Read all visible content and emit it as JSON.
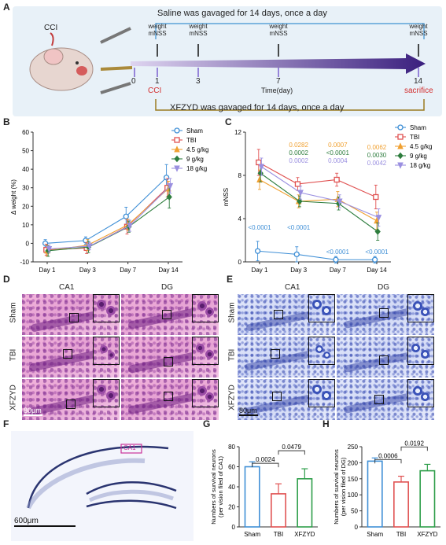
{
  "panels": {
    "A": "A",
    "B": "B",
    "C": "C",
    "D": "D",
    "E": "E",
    "F": "F",
    "G": "G",
    "H": "H"
  },
  "panelA": {
    "saline_text": "Saline was gavaged for 14 days, once a day",
    "xfzyd_text": "XFZYD was gavaged for 14 days, once a day",
    "cci_label": "CCI",
    "timeline_days": [
      "0",
      "1",
      "3",
      "7",
      "14"
    ],
    "time_axis_label": "Time(day)",
    "weight_label_line1": "weight",
    "weight_label_line2": "mNSS",
    "cci_marker": "CCI",
    "sacrifice_marker": "sacrifice"
  },
  "chart_data": [
    {
      "id": "B",
      "type": "line",
      "ylabel": "Δ weight (%)",
      "categories": [
        "Day 1",
        "Day 3",
        "Day 7",
        "Day 14"
      ],
      "yticks": [
        "-10",
        "0",
        "10",
        "20",
        "30",
        "40",
        "50",
        "60"
      ],
      "ylim": [
        -10,
        60
      ],
      "legend_placement": "top-right",
      "series": [
        {
          "name": "Sham",
          "color": "#3f8fd6",
          "marker": "circle",
          "values": [
            0,
            1.5,
            14.5,
            35.5
          ],
          "err": [
            2,
            2,
            5,
            7
          ]
        },
        {
          "name": "TBI",
          "color": "#e05252",
          "marker": "square",
          "values": [
            -3.5,
            -2.5,
            9,
            30
          ],
          "err": [
            3,
            3,
            4,
            5
          ]
        },
        {
          "name": "4.5 g/kg",
          "color": "#f0a030",
          "marker": "triangle",
          "values": [
            -4,
            -1,
            10,
            29.5
          ],
          "err": [
            3,
            3,
            3,
            4
          ]
        },
        {
          "name": "9 g/kg",
          "color": "#2e7d3e",
          "marker": "diamond",
          "values": [
            -4,
            -2,
            9,
            25
          ],
          "err": [
            3,
            3,
            3,
            6
          ]
        },
        {
          "name": "18 g/kg",
          "color": "#9a8fe0",
          "marker": "tri-down",
          "values": [
            -3,
            -1.5,
            9.5,
            31
          ],
          "err": [
            2,
            2,
            3,
            4
          ]
        }
      ]
    },
    {
      "id": "C",
      "type": "line",
      "ylabel": "mNSS",
      "categories": [
        "Day 1",
        "Day 3",
        "Day 7",
        "Day 14"
      ],
      "yticks": [
        "0",
        "4",
        "8",
        "12"
      ],
      "ylim": [
        0,
        12
      ],
      "legend_placement": "top-right",
      "series": [
        {
          "name": "Sham",
          "color": "#3f8fd6",
          "marker": "circle",
          "values": [
            1,
            0.7,
            0.2,
            0.2
          ],
          "err": [
            0.9,
            0.7,
            0.3,
            0.3
          ]
        },
        {
          "name": "TBI",
          "color": "#e05252",
          "marker": "square",
          "values": [
            9.2,
            7.2,
            7.6,
            6
          ],
          "err": [
            1.2,
            0.6,
            0.6,
            1.1
          ]
        },
        {
          "name": "4.5 g/kg",
          "color": "#f0a030",
          "marker": "triangle",
          "values": [
            7.6,
            5.6,
            5.8,
            3.8
          ],
          "err": [
            0.9,
            0.6,
            0.7,
            0.8
          ]
        },
        {
          "name": "9 g/kg",
          "color": "#2e7d3e",
          "marker": "diamond",
          "values": [
            8.2,
            5.6,
            5.4,
            2.8
          ],
          "err": [
            0.8,
            0.5,
            0.6,
            0.8
          ]
        },
        {
          "name": "18 g/kg",
          "color": "#9a8fe0",
          "marker": "tri-down",
          "values": [
            8.8,
            6.4,
            5.6,
            4.1
          ],
          "err": [
            0.8,
            0.6,
            0.6,
            0.8
          ]
        }
      ],
      "annotations": [
        {
          "text": "<0.0001",
          "day": "Day 1",
          "color": "#3f8fd6"
        },
        {
          "text": "<0.0001",
          "day": "Day 3",
          "color": "#3f8fd6"
        },
        {
          "text": "<0.0001",
          "day": "Day 7",
          "color": "#3f8fd6"
        },
        {
          "text": "<0.0001",
          "day": "Day 14",
          "color": "#3f8fd6"
        },
        {
          "text": "0.0282",
          "day": "Day 3",
          "color": "#f0a030"
        },
        {
          "text": "0.0002",
          "day": "Day 3",
          "color": "#2e7d3e"
        },
        {
          "text": "0.0002",
          "day": "Day 3",
          "color": "#9a8fe0"
        },
        {
          "text": "0.0007",
          "day": "Day 7",
          "color": "#f0a030"
        },
        {
          "text": "<0.0001",
          "day": "Day 7",
          "color": "#2e7d3e"
        },
        {
          "text": "0.0004",
          "day": "Day 7",
          "color": "#9a8fe0"
        },
        {
          "text": "0.0062",
          "day": "Day 14",
          "color": "#f0a030"
        },
        {
          "text": "0.0030",
          "day": "Day 14",
          "color": "#2e7d3e"
        },
        {
          "text": "0.0042",
          "day": "Day 14",
          "color": "#9a8fe0"
        }
      ]
    },
    {
      "id": "G",
      "type": "bar",
      "ylabel_line1": "Numbers of survival neurons",
      "ylabel_line2": "(per vision filed of CA1)",
      "categories": [
        "Sham",
        "TBI",
        "XFZYD"
      ],
      "values": [
        60,
        33,
        48
      ],
      "err": [
        5,
        10,
        10
      ],
      "colors": [
        "#3f8fd6",
        "#e05252",
        "#2e9e4a"
      ],
      "yticks": [
        "0",
        "20",
        "40",
        "60",
        "80"
      ],
      "ylim": [
        0,
        80
      ],
      "brackets": [
        {
          "from": 0,
          "to": 1,
          "p": "0.0024"
        },
        {
          "from": 1,
          "to": 2,
          "p": "0.0479"
        }
      ]
    },
    {
      "id": "H",
      "type": "bar",
      "ylabel_line1": "Numbers of survival neurons",
      "ylabel_line2": "(per vision filed of DG)",
      "categories": [
        "Sham",
        "TBI",
        "XFZYD"
      ],
      "values": [
        205,
        140,
        175
      ],
      "err": [
        10,
        18,
        20
      ],
      "colors": [
        "#3f8fd6",
        "#e05252",
        "#2e9e4a"
      ],
      "yticks": [
        "0",
        "50",
        "100",
        "150",
        "200",
        "250"
      ],
      "ylim": [
        0,
        250
      ],
      "brackets": [
        {
          "from": 0,
          "to": 1,
          "p": "0.0006"
        },
        {
          "from": 1,
          "to": 2,
          "p": "0.0192"
        }
      ]
    }
  ],
  "panelD": {
    "cols": [
      "CA1",
      "DG"
    ],
    "rows": [
      "Sham",
      "TBI",
      "XFZYD"
    ],
    "scale": "80μm"
  },
  "panelE": {
    "cols": [
      "CA1",
      "DG"
    ],
    "rows": [
      "Sham",
      "TBI",
      "XFZYD"
    ],
    "scale": "80μm"
  },
  "panelF": {
    "region_label": "CA1",
    "scale": "600μm"
  }
}
